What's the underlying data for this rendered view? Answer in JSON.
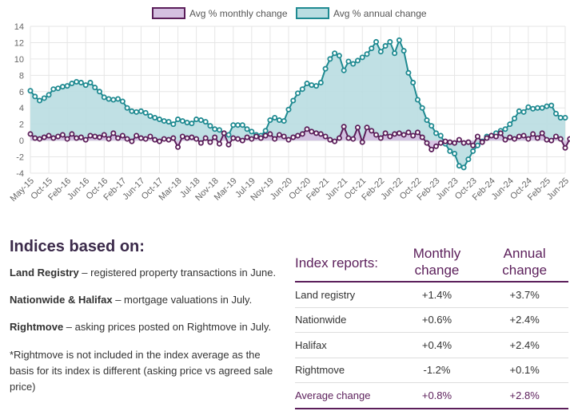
{
  "chart_data": {
    "type": "line",
    "legend": [
      "Avg % monthly change",
      "Avg % annual change"
    ],
    "legend_position": "top-center",
    "colors": {
      "monthly_line": "#5b1e5a",
      "monthly_fill": "#d4bfe0",
      "annual_line": "#1f8a91",
      "annual_fill": "#b9dde1",
      "grid": "#e6e6e6"
    },
    "ylim": [
      -4,
      14
    ],
    "yticks": [
      14,
      12,
      10,
      8,
      6,
      4,
      2,
      0,
      -2,
      -4
    ],
    "xtick_labels": [
      "May-15",
      "Oct-15",
      "Feb-16",
      "Jun-16",
      "Oct-16",
      "Feb-17",
      "Jun-17",
      "Oct-17",
      "Mar-18",
      "Jul-18",
      "Nov-18",
      "Mar-19",
      "Jul-19",
      "Nov-19",
      "Jun-20",
      "Oct-20",
      "Feb-21",
      "Jun-21",
      "Oct-21",
      "Feb-22",
      "Jun-22",
      "Oct-22",
      "Feb-23",
      "Jun-23",
      "Oct-23",
      "Feb-24",
      "Jun-24",
      "Oct-24",
      "Feb-25",
      "Jun-25"
    ],
    "series": [
      {
        "name": "Avg % monthly change",
        "values": [
          0.8,
          0.3,
          0.2,
          0.4,
          0.6,
          0.3,
          0.5,
          0.7,
          0.2,
          0.8,
          0.3,
          0.4,
          0.1,
          0.6,
          0.5,
          0.4,
          0.7,
          0.2,
          0.9,
          0.3,
          0.6,
          0.2,
          -0.1,
          0.6,
          0.3,
          0.2,
          0.5,
          0.1,
          -0.1,
          0.2,
          0.1,
          0.3,
          -0.8,
          0.5,
          0.3,
          0.4,
          0.2,
          -0.3,
          0.3,
          -0.2,
          0.4,
          -0.4,
          0.9,
          -0.5,
          0.3,
          0.2,
          0.0,
          0.4,
          0.2,
          0.5,
          0.3,
          0.6,
          0.8,
          0.2,
          0.7,
          0.5,
          0.1,
          0.4,
          0.6,
          0.8,
          1.4,
          1.1,
          0.9,
          0.8,
          0.5,
          0.1,
          -0.1,
          0.3,
          1.7,
          0.3,
          0.2,
          1.6,
          -0.2,
          1.6,
          1.2,
          0.7,
          0.3,
          0.9,
          0.5,
          0.8,
          0.9,
          0.7,
          1.0,
          0.6,
          1.0,
          0.4,
          -0.3,
          -1.1,
          -0.7,
          -0.3,
          -0.1,
          -0.2,
          -0.3,
          0.1,
          -0.3,
          -0.2,
          -0.6,
          0.5,
          -0.2,
          0.3,
          0.6,
          0.5,
          0.9,
          0.1,
          0.4,
          0.2,
          0.5,
          0.6,
          0.2,
          0.8,
          0.3,
          0.9,
          0.1,
          0.0,
          0.5,
          0.2,
          -0.9,
          0.2,
          0.8
        ]
      },
      {
        "name": "Avg % annual change",
        "values": [
          6.1,
          5.4,
          4.9,
          5.2,
          5.6,
          6.3,
          6.4,
          6.6,
          6.7,
          7.0,
          7.2,
          7.1,
          6.8,
          7.1,
          6.5,
          6.0,
          5.3,
          5.1,
          5.0,
          5.1,
          4.8,
          4.0,
          3.6,
          3.5,
          3.6,
          3.4,
          3.0,
          2.8,
          2.6,
          2.4,
          2.3,
          2.0,
          2.6,
          2.4,
          2.2,
          2.1,
          2.6,
          2.5,
          2.3,
          1.8,
          1.4,
          1.3,
          0.9,
          0.7,
          1.9,
          1.9,
          1.9,
          1.4,
          1.1,
          0.7,
          0.6,
          1.2,
          2.5,
          2.8,
          2.5,
          2.4,
          3.8,
          4.9,
          5.8,
          6.3,
          7.0,
          6.8,
          6.7,
          7.1,
          8.8,
          10.0,
          10.7,
          10.4,
          8.6,
          9.7,
          9.4,
          9.8,
          10.2,
          10.6,
          11.3,
          12.1,
          10.9,
          11.6,
          12.1,
          10.7,
          12.3,
          11.0,
          8.3,
          7.1,
          5.0,
          4.0,
          2.5,
          1.8,
          0.9,
          0.6,
          -0.4,
          -1.3,
          -1.6,
          -3.1,
          -3.3,
          -2.3,
          -1.3,
          -0.6,
          -0.1,
          0.5,
          0.6,
          0.9,
          1.2,
          1.4,
          2.0,
          2.7,
          3.6,
          3.5,
          4.1,
          3.9,
          4.0,
          4.0,
          4.2,
          4.3,
          3.3,
          2.8,
          2.8
        ]
      }
    ]
  },
  "indices": {
    "heading": "Indices based on:",
    "items": [
      {
        "name": "Land Registry",
        "desc": " – registered property transactions in June."
      },
      {
        "name": "Nationwide & Halifax",
        "desc": " – mortgage valuations in July."
      },
      {
        "name": "Rightmove",
        "desc": " – asking prices posted on Rightmove in July."
      }
    ],
    "note": "*Rightmove is not included in the index average as the basis for its index is different (asking price vs agreed sale price)"
  },
  "table": {
    "headers": [
      "Index reports:",
      "Monthly change",
      "Annual change"
    ],
    "rows": [
      {
        "name": "Land registry",
        "monthly": "+1.4%",
        "annual": "+3.7%"
      },
      {
        "name": "Nationwide",
        "monthly": "+0.6%",
        "annual": "+2.4%"
      },
      {
        "name": "Halifax",
        "monthly": "+0.4%",
        "annual": "+2.4%"
      },
      {
        "name": "Rightmove",
        "monthly": "-1.2%",
        "annual": "+0.1%"
      }
    ],
    "average": {
      "name": "Average change",
      "monthly": "+0.8%",
      "annual": "+2.8%"
    }
  }
}
